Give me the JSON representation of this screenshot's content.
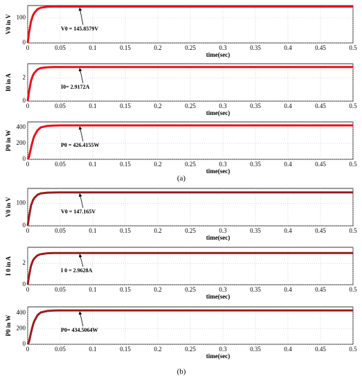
{
  "chart_data": [
    {
      "type": "line",
      "x_label": "time(sec)",
      "y_label": "V0 in V",
      "annotation": "V0 = 145.8579V",
      "x": [
        0,
        0.002,
        0.005,
        0.008,
        0.01,
        0.015,
        0.02,
        0.03,
        0.04,
        0.05,
        0.1,
        0.2,
        0.3,
        0.4,
        0.5
      ],
      "series": [
        {
          "color": "#e8101a",
          "values": [
            0,
            40,
            85,
            110,
            120,
            135,
            141,
            145,
            145.7,
            145.85,
            145.8579,
            145.8579,
            145.8579,
            145.8579,
            145.8579
          ]
        }
      ],
      "xlim": [
        0,
        0.5
      ],
      "ylim": [
        0,
        150
      ],
      "xticks": [
        0,
        0.05,
        0.1,
        0.15,
        0.2,
        0.25,
        0.3,
        0.35,
        0.4,
        0.45,
        0.5
      ],
      "yticks": [
        0,
        100
      ],
      "grid": true
    },
    {
      "type": "line",
      "x_label": "time(sec)",
      "y_label": "I0 in A",
      "annotation": "I0= 2.9172A",
      "x": [
        0,
        0.002,
        0.005,
        0.008,
        0.01,
        0.015,
        0.02,
        0.03,
        0.04,
        0.05,
        0.1,
        0.2,
        0.3,
        0.4,
        0.5
      ],
      "series": [
        {
          "color": "#e8101a",
          "values": [
            0,
            0.8,
            1.7,
            2.2,
            2.4,
            2.7,
            2.83,
            2.9,
            2.914,
            2.917,
            2.9172,
            2.9172,
            2.9172,
            2.9172,
            2.9172
          ]
        }
      ],
      "xlim": [
        0,
        0.5
      ],
      "ylim": [
        0,
        3.2
      ],
      "xticks": [
        0,
        0.05,
        0.1,
        0.15,
        0.2,
        0.25,
        0.3,
        0.35,
        0.4,
        0.45,
        0.5
      ],
      "yticks": [
        0,
        2
      ],
      "grid": true
    },
    {
      "type": "line",
      "x_label": "time(sec)",
      "y_label": "P0 in W",
      "annotation": "P0 = 426.4155W",
      "x": [
        0,
        0.002,
        0.005,
        0.008,
        0.01,
        0.015,
        0.02,
        0.03,
        0.04,
        0.05,
        0.1,
        0.2,
        0.3,
        0.4,
        0.5
      ],
      "series": [
        {
          "color": "#e8101a",
          "values": [
            0,
            30,
            140,
            240,
            290,
            365,
            400,
            420,
            425,
            426.4,
            426.4155,
            426.4155,
            426.4155,
            426.4155,
            426.4155
          ]
        }
      ],
      "xlim": [
        0,
        0.5
      ],
      "ylim": [
        0,
        470
      ],
      "xticks": [
        0,
        0.05,
        0.1,
        0.15,
        0.2,
        0.25,
        0.3,
        0.35,
        0.4,
        0.45,
        0.5
      ],
      "yticks": [
        0,
        200,
        400
      ],
      "grid": true
    },
    {
      "type": "line",
      "x_label": "time(sec)",
      "y_label": "V0 in V",
      "annotation": "V0 = 147.165V",
      "x": [
        0,
        0.002,
        0.005,
        0.008,
        0.01,
        0.015,
        0.02,
        0.03,
        0.04,
        0.05,
        0.1,
        0.2,
        0.3,
        0.4,
        0.5
      ],
      "series": [
        {
          "color": "#9b1b1b",
          "values": [
            0,
            40,
            88,
            112,
            122,
            137,
            143,
            146.5,
            147,
            147.15,
            147.165,
            147.165,
            147.165,
            147.165,
            147.165
          ]
        }
      ],
      "xlim": [
        0,
        0.5
      ],
      "ylim": [
        0,
        165
      ],
      "xticks": [
        0,
        0.05,
        0.1,
        0.15,
        0.2,
        0.25,
        0.3,
        0.35,
        0.4,
        0.45,
        0.5
      ],
      "yticks": [
        0,
        100
      ],
      "grid": true
    },
    {
      "type": "line",
      "x_label": "time(sec)",
      "y_label": "I 0 in A",
      "annotation": "I 0 = 2.9628A",
      "x": [
        0,
        0.002,
        0.005,
        0.008,
        0.01,
        0.015,
        0.02,
        0.03,
        0.04,
        0.05,
        0.1,
        0.2,
        0.3,
        0.4,
        0.5
      ],
      "series": [
        {
          "color": "#9b1b1b",
          "values": [
            0,
            0.8,
            1.75,
            2.25,
            2.45,
            2.74,
            2.86,
            2.94,
            2.96,
            2.9628,
            2.9628,
            2.9628,
            2.9628,
            2.9628,
            2.9628
          ]
        }
      ],
      "xlim": [
        0,
        0.5
      ],
      "ylim": [
        0,
        3.5
      ],
      "xticks": [
        0,
        0.05,
        0.1,
        0.15,
        0.2,
        0.25,
        0.3,
        0.35,
        0.4,
        0.45,
        0.5
      ],
      "yticks": [
        0,
        2
      ],
      "grid": true
    },
    {
      "type": "line",
      "x_label": "time(sec)",
      "y_label": "P0 in W",
      "annotation": "P0= 434.5064W",
      "x": [
        0,
        0.002,
        0.005,
        0.008,
        0.01,
        0.015,
        0.02,
        0.03,
        0.04,
        0.05,
        0.1,
        0.2,
        0.3,
        0.4,
        0.5
      ],
      "series": [
        {
          "color": "#9b1b1b",
          "values": [
            0,
            30,
            145,
            245,
            295,
            372,
            408,
            428,
            433,
            434.5,
            434.5064,
            434.5064,
            434.5064,
            434.5064,
            434.5064
          ]
        }
      ],
      "xlim": [
        0,
        0.5
      ],
      "ylim": [
        0,
        480
      ],
      "xticks": [
        0,
        0.05,
        0.1,
        0.15,
        0.2,
        0.25,
        0.3,
        0.35,
        0.4,
        0.45,
        0.5
      ],
      "yticks": [
        0,
        200,
        400
      ],
      "grid": true
    }
  ],
  "captions": [
    "(a)",
    "(b)"
  ]
}
